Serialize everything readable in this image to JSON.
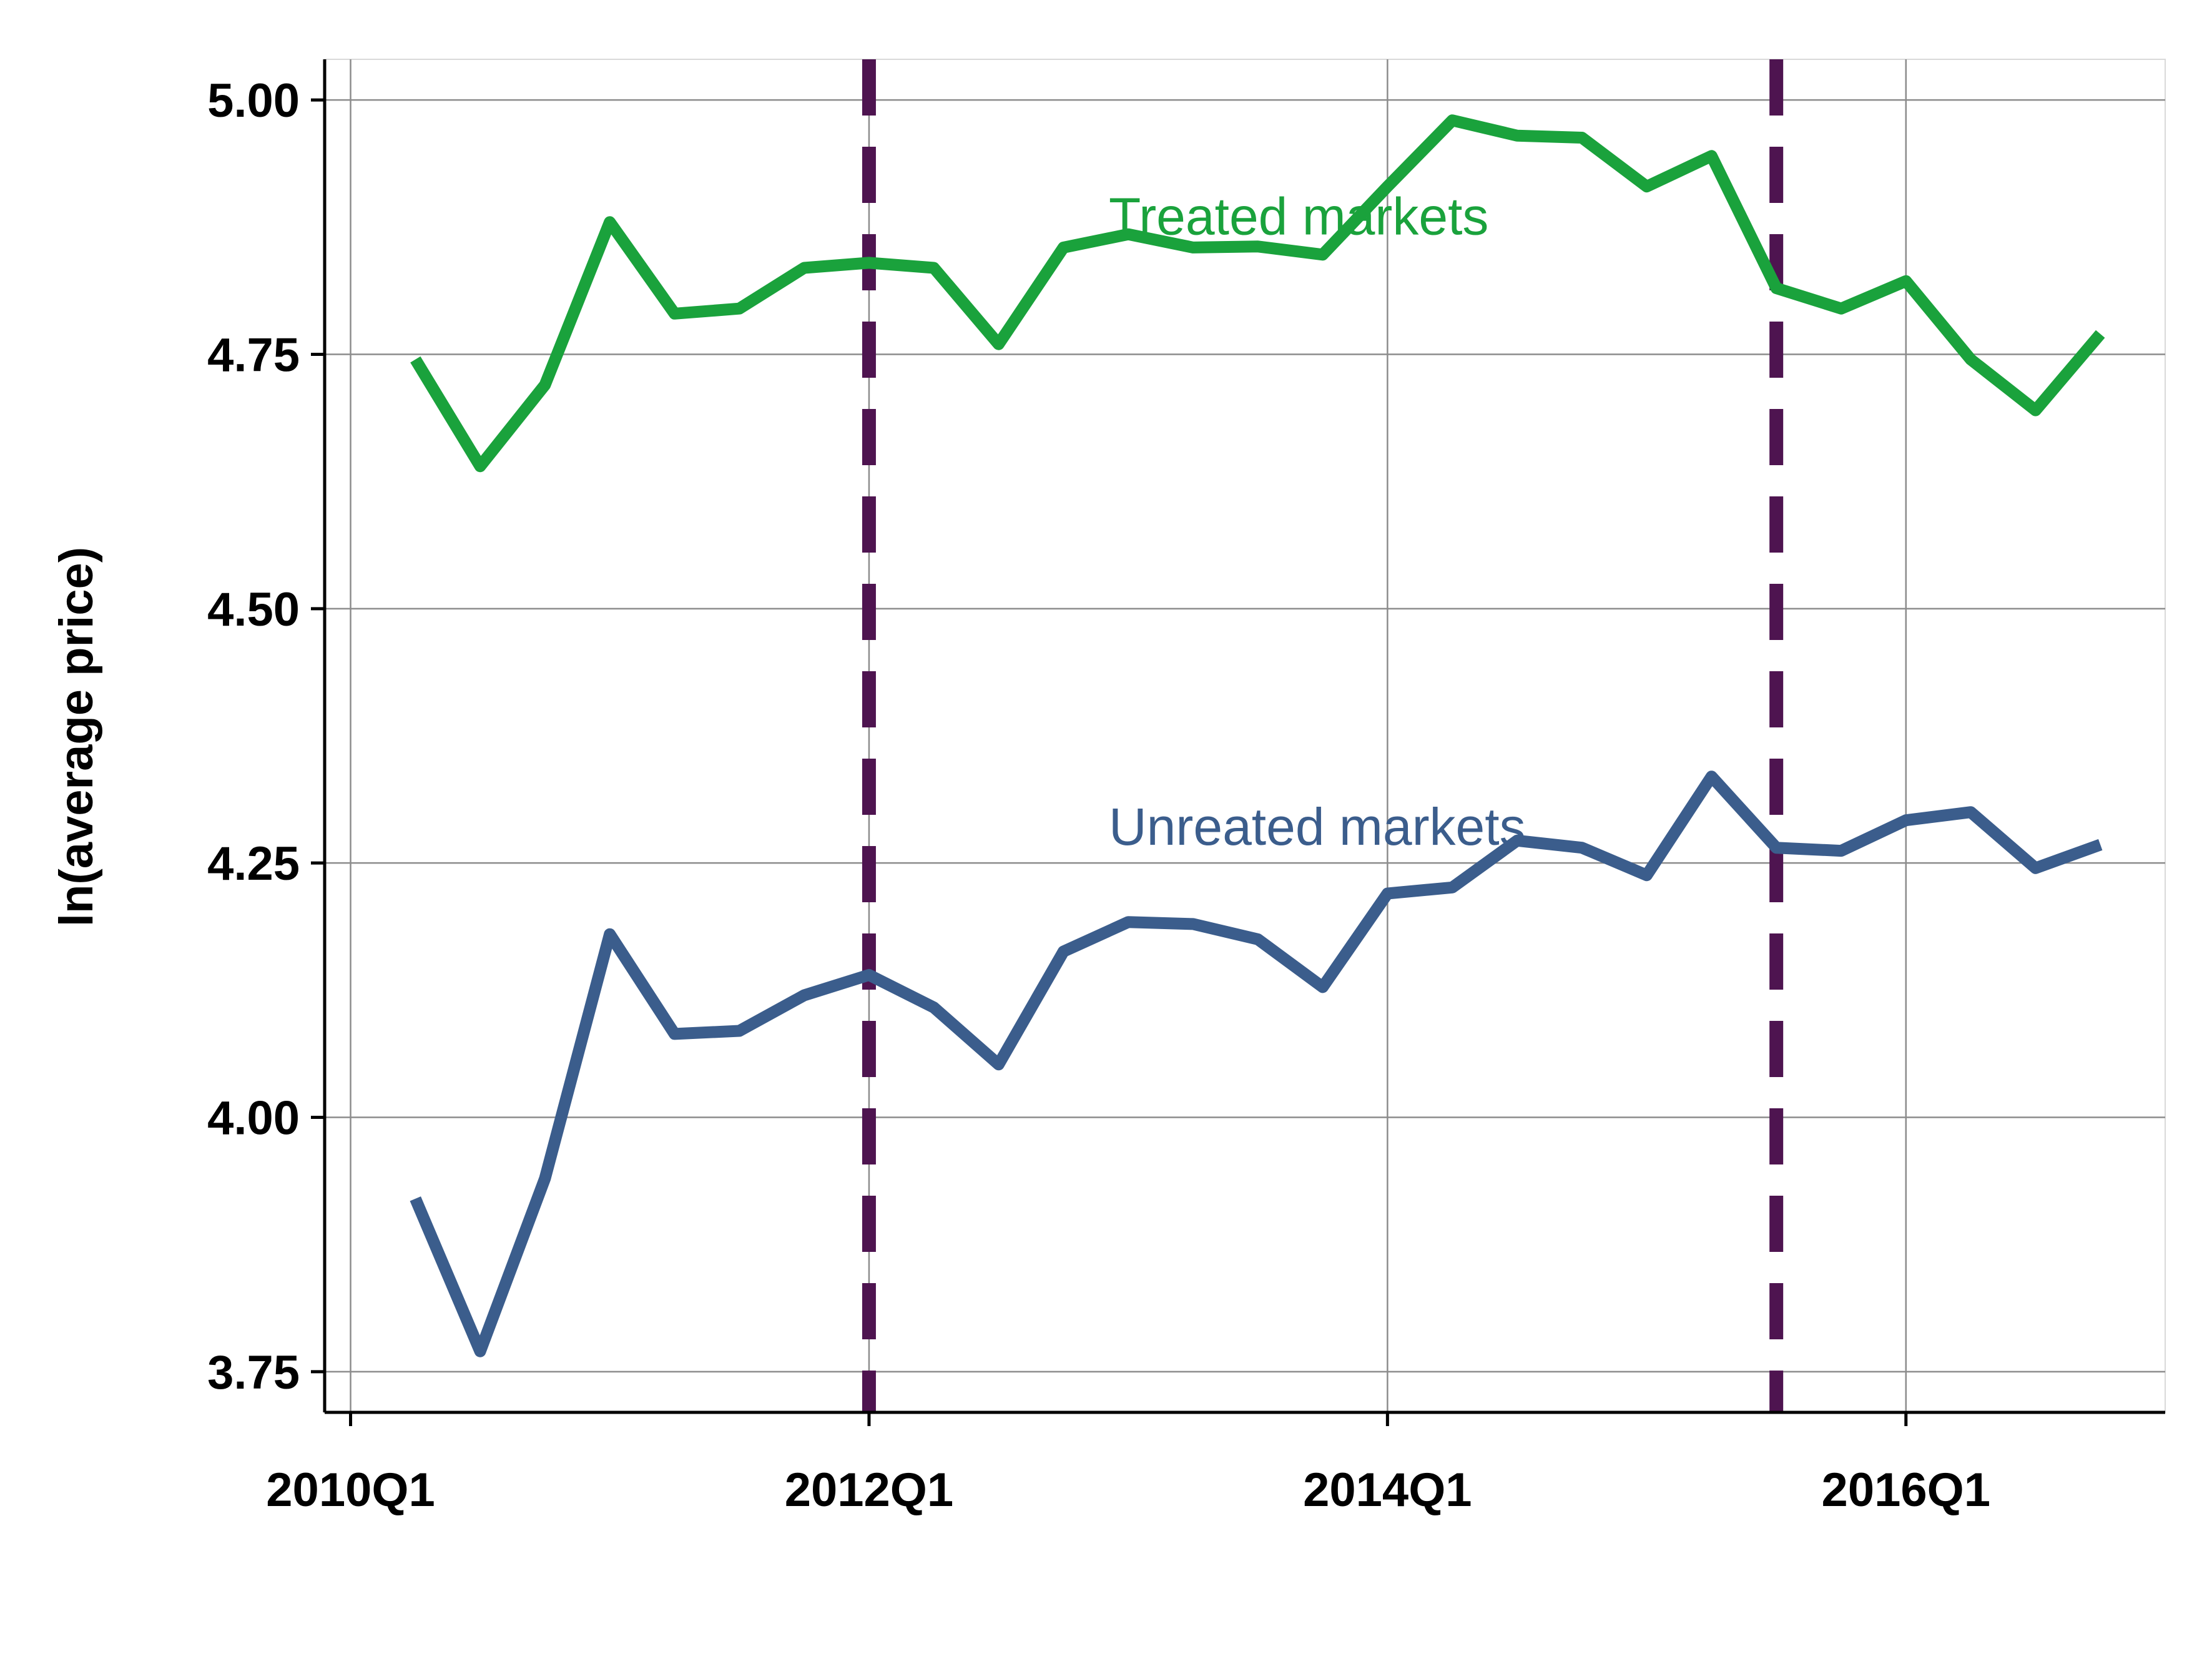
{
  "chart_data": {
    "type": "line",
    "title": "",
    "xlabel": "",
    "ylabel": "ln(average price)",
    "ylim": [
      3.71,
      5.04
    ],
    "xlim": [
      -0.4,
      28.0
    ],
    "grid": true,
    "x_ticks": [
      {
        "value": 0,
        "label": "2010Q1"
      },
      {
        "value": 8,
        "label": "2012Q1"
      },
      {
        "value": 16,
        "label": "2014Q1"
      },
      {
        "value": 24,
        "label": "2016Q1"
      }
    ],
    "y_ticks": [
      {
        "value": 3.75,
        "label": "3.75"
      },
      {
        "value": 4.0,
        "label": "4.00"
      },
      {
        "value": 4.25,
        "label": "4.25"
      },
      {
        "value": 4.5,
        "label": "4.50"
      },
      {
        "value": 4.75,
        "label": "4.75"
      },
      {
        "value": 5.0,
        "label": "5.00"
      }
    ],
    "x": [
      1,
      2,
      3,
      4,
      5,
      6,
      7,
      8,
      9,
      10,
      11,
      12,
      13,
      14,
      15,
      16,
      17,
      18,
      19,
      20,
      21,
      22,
      23,
      24,
      25,
      26,
      27
    ],
    "series": [
      {
        "name": "Treated markets",
        "color": "#1aa23c",
        "values": [
          4.745,
          4.64,
          4.72,
          4.88,
          4.79,
          4.795,
          4.835,
          4.84,
          4.835,
          4.76,
          4.855,
          4.868,
          4.855,
          4.856,
          4.848,
          4.915,
          4.98,
          4.965,
          4.963,
          4.915,
          4.945,
          4.815,
          4.795,
          4.822,
          4.745,
          4.695,
          4.77
        ],
        "label_x": 11.7,
        "label_y": 4.885
      },
      {
        "name": "Unreated markets",
        "color": "#3b5d8c",
        "values": [
          3.92,
          3.77,
          3.94,
          4.18,
          4.082,
          4.085,
          4.12,
          4.14,
          4.108,
          4.052,
          4.163,
          4.192,
          4.19,
          4.175,
          4.128,
          4.22,
          4.226,
          4.272,
          4.265,
          4.238,
          4.335,
          4.265,
          4.262,
          4.292,
          4.3,
          4.245,
          4.268
        ],
        "label_x": 11.7,
        "label_y": 4.285
      }
    ],
    "vlines": [
      {
        "x": 8,
        "color": "#4e1450",
        "style": "dashed"
      },
      {
        "x": 22,
        "color": "#4e1450",
        "style": "dashed"
      }
    ]
  }
}
